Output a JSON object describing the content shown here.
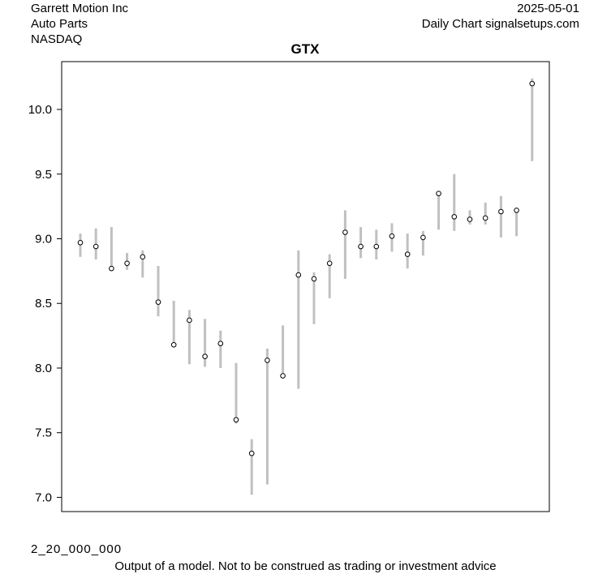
{
  "header": {
    "company": "Garrett Motion Inc",
    "sector": "Auto Parts",
    "exchange": "NASDAQ",
    "date": "2025-05-01",
    "source": "Daily Chart signalsetups.com"
  },
  "footer": {
    "model_code": "2_20_000_000",
    "disclaimer": "Output of a model. Not to be construed as trading or investment advice"
  },
  "colors": {
    "range_bar": "#c0c0c0",
    "close_marker": "#000000",
    "frame": "#000000"
  },
  "chart_data": {
    "type": "range-bar",
    "title": "GTX",
    "xlabel": "",
    "ylabel": "",
    "ylim": [
      6.89,
      10.37
    ],
    "yticks": [
      7.0,
      7.5,
      8.0,
      8.5,
      9.0,
      9.5,
      10.0
    ],
    "grid": false,
    "series": [
      {
        "low": 8.86,
        "high": 9.04,
        "close": 8.97
      },
      {
        "low": 8.84,
        "high": 9.08,
        "close": 8.94
      },
      {
        "low": 8.76,
        "high": 9.09,
        "close": 8.77
      },
      {
        "low": 8.76,
        "high": 8.89,
        "close": 8.81
      },
      {
        "low": 8.7,
        "high": 8.91,
        "close": 8.86
      },
      {
        "low": 8.4,
        "high": 8.79,
        "close": 8.51
      },
      {
        "low": 8.17,
        "high": 8.52,
        "close": 8.18
      },
      {
        "low": 8.03,
        "high": 8.45,
        "close": 8.37
      },
      {
        "low": 8.01,
        "high": 8.38,
        "close": 8.09
      },
      {
        "low": 8.0,
        "high": 8.29,
        "close": 8.19
      },
      {
        "low": 7.57,
        "high": 8.04,
        "close": 7.6
      },
      {
        "low": 7.02,
        "high": 7.45,
        "close": 7.34
      },
      {
        "low": 7.1,
        "high": 8.15,
        "close": 8.06
      },
      {
        "low": 7.93,
        "high": 8.33,
        "close": 7.94
      },
      {
        "low": 7.84,
        "high": 8.91,
        "close": 8.72
      },
      {
        "low": 8.34,
        "high": 8.74,
        "close": 8.69
      },
      {
        "low": 8.54,
        "high": 8.88,
        "close": 8.81
      },
      {
        "low": 8.69,
        "high": 9.22,
        "close": 9.05
      },
      {
        "low": 8.85,
        "high": 9.09,
        "close": 8.94
      },
      {
        "low": 8.84,
        "high": 9.07,
        "close": 8.94
      },
      {
        "low": 8.9,
        "high": 9.12,
        "close": 9.02
      },
      {
        "low": 8.77,
        "high": 9.04,
        "close": 8.88
      },
      {
        "low": 8.87,
        "high": 9.06,
        "close": 9.01
      },
      {
        "low": 9.07,
        "high": 9.36,
        "close": 9.35
      },
      {
        "low": 9.06,
        "high": 9.5,
        "close": 9.17
      },
      {
        "low": 9.11,
        "high": 9.22,
        "close": 9.15
      },
      {
        "low": 9.11,
        "high": 9.28,
        "close": 9.16
      },
      {
        "low": 9.01,
        "high": 9.33,
        "close": 9.21
      },
      {
        "low": 9.02,
        "high": 9.22,
        "close": 9.22
      },
      {
        "low": 9.6,
        "high": 10.24,
        "close": 10.2
      }
    ]
  }
}
